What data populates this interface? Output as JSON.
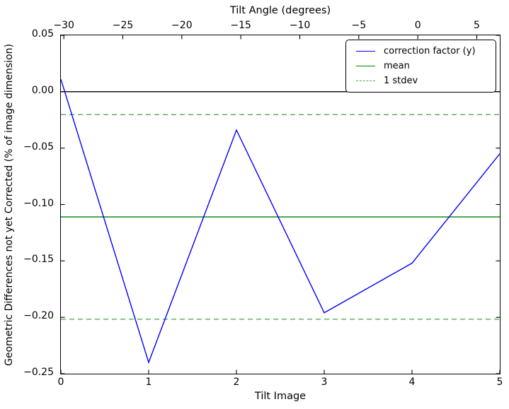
{
  "figure": {
    "background": "#ffffff"
  },
  "legend": {
    "entries": [
      {
        "label": "correction factor (y)",
        "color": "#0000ff",
        "dash": "solid"
      },
      {
        "label": "mean",
        "color": "#008000",
        "dash": "solid"
      },
      {
        "label": "1 stdev",
        "color": "#44a044",
        "dash": "dashed"
      }
    ]
  },
  "chart_data": {
    "type": "line",
    "title": "",
    "xlabel": "Tilt Image",
    "ylabel": "Geometric Differences not yet Corrected (% of image dimension)",
    "x": [
      0,
      1,
      2,
      3,
      4,
      5
    ],
    "series": [
      {
        "name": "correction factor (y)",
        "color": "#0000ff",
        "values": [
          0.011,
          -0.24,
          -0.034,
          -0.196,
          -0.152,
          -0.055
        ]
      }
    ],
    "mean": -0.111,
    "stdev": 0.0907,
    "reference_lines": {
      "zero": {
        "y": 0.0,
        "color": "#000000",
        "style": "solid"
      },
      "mean": {
        "y": -0.111,
        "color": "#008000",
        "style": "solid"
      },
      "stdev_upper": {
        "y": -0.0203,
        "color": "#44a044",
        "style": "dashed"
      },
      "stdev_lower": {
        "y": -0.2017,
        "color": "#44a044",
        "style": "dashed"
      }
    },
    "xlim": [
      0,
      5
    ],
    "ylim": [
      -0.25,
      0.05
    ],
    "grid": false,
    "legend_position": "upper right",
    "x_ticks": {
      "values": [
        0,
        1,
        2,
        3,
        4,
        5
      ],
      "labels": [
        "0",
        "1",
        "2",
        "3",
        "4",
        "5"
      ]
    },
    "y_ticks": {
      "values": [
        0.05,
        0.0,
        -0.05,
        -0.1,
        -0.15,
        -0.2,
        -0.25
      ],
      "labels": [
        "0.05",
        "0.00",
        "−0.05",
        "−0.10",
        "−0.15",
        "−0.20",
        "−0.25"
      ]
    },
    "top_axis": {
      "label": "Tilt Angle (degrees)",
      "lim": [
        -30.25,
        6.95
      ],
      "ticks": [
        -30,
        -25,
        -20,
        -15,
        -10,
        -5,
        0,
        5
      ],
      "tick_labels": [
        "−30",
        "−25",
        "−20",
        "−15",
        "−10",
        "−5",
        "0",
        "5"
      ]
    }
  }
}
